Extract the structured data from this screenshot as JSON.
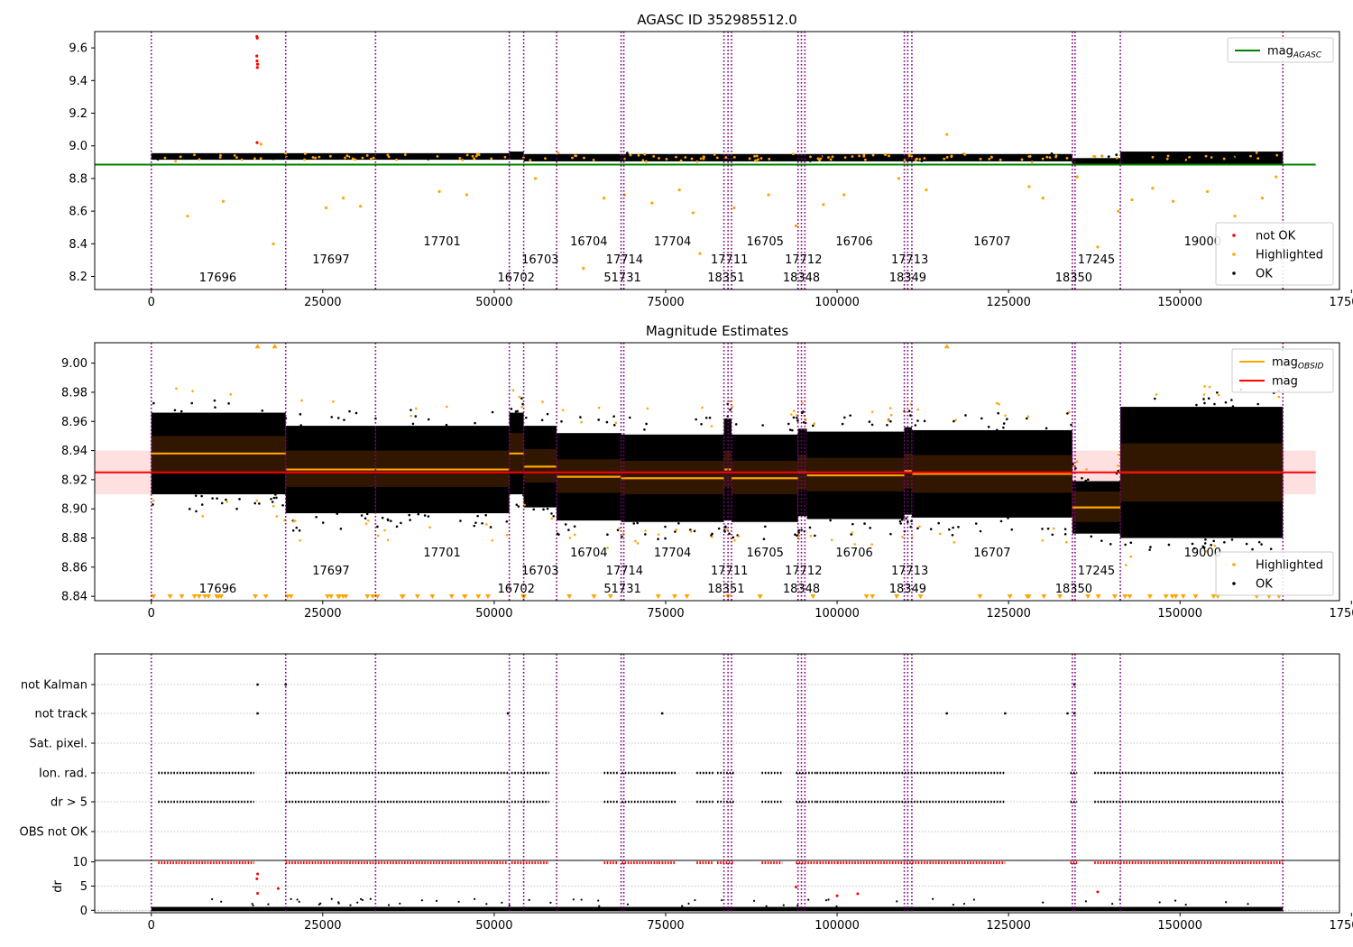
{
  "chart_data": [
    {
      "type": "scatter",
      "title": "AGASC ID 352985512.0",
      "xlim": [
        -8250,
        173250
      ],
      "ylim": [
        8.12,
        9.7
      ],
      "xticks": [
        0,
        25000,
        50000,
        75000,
        100000,
        125000,
        150000,
        175000
      ],
      "xtick_labels": [
        "0",
        "25000",
        "50000",
        "75000",
        "100000",
        "125000",
        "150000",
        "175000"
      ],
      "yticks": [
        8.2,
        8.4,
        8.6,
        8.8,
        9.0,
        9.2,
        9.4,
        9.6
      ],
      "ytick_labels": [
        "8.2",
        "8.4",
        "8.6",
        "8.8",
        "9.0",
        "9.2",
        "9.4",
        "9.6"
      ],
      "mag_agasc": 8.885,
      "band": [
        8.915,
        8.96
      ],
      "legends": [
        {
          "position": "top-right",
          "entries": [
            {
              "label": "mag",
              "sub": "AGASC",
              "color": "#008000",
              "kind": "line"
            }
          ]
        },
        {
          "position": "bottom-right",
          "entries": [
            {
              "label": "not OK",
              "color": "#ff0000",
              "kind": "dot"
            },
            {
              "label": "Highlighted",
              "color": "#ffa500",
              "kind": "dot"
            },
            {
              "label": "OK",
              "color": "#000000",
              "kind": "dot"
            }
          ]
        }
      ],
      "outliers_notok": [
        [
          15400,
          9.67
        ],
        [
          15450,
          9.66
        ],
        [
          15380,
          9.55
        ],
        [
          15420,
          9.52
        ],
        [
          15500,
          9.5
        ],
        [
          15460,
          9.48
        ],
        [
          15420,
          9.02
        ]
      ],
      "outliers_high": [
        [
          5300,
          8.57
        ],
        [
          10500,
          8.66
        ],
        [
          17800,
          8.4
        ],
        [
          16000,
          9.01
        ],
        [
          25500,
          8.62
        ],
        [
          28000,
          8.68
        ],
        [
          30500,
          8.63
        ],
        [
          42000,
          8.72
        ],
        [
          46000,
          8.7
        ],
        [
          56000,
          8.8
        ],
        [
          63000,
          8.25
        ],
        [
          66000,
          8.68
        ],
        [
          69000,
          8.7
        ],
        [
          73000,
          8.65
        ],
        [
          77000,
          8.73
        ],
        [
          79000,
          8.59
        ],
        [
          80000,
          8.34
        ],
        [
          85000,
          8.62
        ],
        [
          90000,
          8.7
        ],
        [
          94000,
          8.51
        ],
        [
          98000,
          8.64
        ],
        [
          101000,
          8.7
        ],
        [
          109000,
          8.8
        ],
        [
          116000,
          9.07
        ],
        [
          113000,
          8.73
        ],
        [
          128000,
          8.75
        ],
        [
          130000,
          8.68
        ],
        [
          135000,
          8.81
        ],
        [
          138000,
          8.38
        ],
        [
          141000,
          8.6
        ],
        [
          143000,
          8.67
        ],
        [
          146000,
          8.74
        ],
        [
          149000,
          8.66
        ],
        [
          154000,
          8.72
        ],
        [
          158000,
          8.57
        ],
        [
          162000,
          8.68
        ],
        [
          164000,
          8.81
        ]
      ]
    },
    {
      "type": "scatter",
      "title": "Magnitude Estimates",
      "xlim": [
        -8250,
        173250
      ],
      "ylim": [
        8.837,
        9.014
      ],
      "xticks": [
        0,
        25000,
        50000,
        75000,
        100000,
        125000,
        150000,
        175000
      ],
      "xtick_labels": [
        "0",
        "25000",
        "50000",
        "75000",
        "100000",
        "125000",
        "150000",
        "175000"
      ],
      "yticks": [
        8.84,
        8.86,
        8.88,
        8.9,
        8.92,
        8.94,
        8.96,
        8.98,
        9.0
      ],
      "ytick_labels": [
        "8.84",
        "8.86",
        "8.88",
        "8.90",
        "8.92",
        "8.94",
        "8.96",
        "8.98",
        "9.00"
      ],
      "mag": 8.925,
      "mag_band": [
        8.91,
        8.94
      ],
      "obsid_segments": [
        {
          "x0": 0,
          "x1": 19600,
          "mag": 8.938,
          "lo": 8.925,
          "hi": 8.95,
          "spread": 0.028
        },
        {
          "x0": 19600,
          "x1": 32700,
          "mag": 8.927,
          "lo": 8.915,
          "hi": 8.94,
          "spread": 0.03
        },
        {
          "x0": 32700,
          "x1": 52200,
          "mag": 8.927,
          "lo": 8.915,
          "hi": 8.94,
          "spread": 0.03
        },
        {
          "x0": 52200,
          "x1": 54300,
          "mag": 8.938,
          "lo": 8.925,
          "hi": 8.952,
          "spread": 0.028
        },
        {
          "x0": 54300,
          "x1": 59100,
          "mag": 8.929,
          "lo": 8.918,
          "hi": 8.941,
          "spread": 0.028
        },
        {
          "x0": 59100,
          "x1": 68500,
          "mag": 8.922,
          "lo": 8.911,
          "hi": 8.934,
          "spread": 0.03
        },
        {
          "x0": 68500,
          "x1": 83500,
          "mag": 8.921,
          "lo": 8.91,
          "hi": 8.933,
          "spread": 0.03
        },
        {
          "x0": 83500,
          "x1": 84600,
          "mag": 8.927,
          "lo": 8.915,
          "hi": 8.94,
          "spread": 0.035
        },
        {
          "x0": 84600,
          "x1": 94300,
          "mag": 8.921,
          "lo": 8.91,
          "hi": 8.933,
          "spread": 0.03
        },
        {
          "x0": 94300,
          "x1": 95600,
          "mag": 8.925,
          "lo": 8.913,
          "hi": 8.937,
          "spread": 0.03
        },
        {
          "x0": 95600,
          "x1": 109800,
          "mag": 8.923,
          "lo": 8.912,
          "hi": 8.935,
          "spread": 0.03
        },
        {
          "x0": 109800,
          "x1": 110900,
          "mag": 8.926,
          "lo": 8.914,
          "hi": 8.938,
          "spread": 0.03
        },
        {
          "x0": 110900,
          "x1": 134300,
          "mag": 8.924,
          "lo": 8.911,
          "hi": 8.937,
          "spread": 0.03
        },
        {
          "x0": 134300,
          "x1": 141300,
          "mag": 8.901,
          "lo": 8.891,
          "hi": 8.912,
          "spread": 0.018
        },
        {
          "x0": 141300,
          "x1": 165000,
          "mag": 8.925,
          "lo": 8.905,
          "hi": 8.945,
          "spread": 0.045
        }
      ],
      "legends": [
        {
          "position": "top-right",
          "entries": [
            {
              "label": "mag",
              "sub": "OBSID",
              "color": "#ffa500",
              "kind": "line"
            },
            {
              "label": "mag",
              "sub": "",
              "color": "#ff0000",
              "kind": "line"
            }
          ]
        },
        {
          "position": "bottom-right",
          "entries": [
            {
              "label": "Highlighted",
              "color": "#ffa500",
              "kind": "dot"
            },
            {
              "label": "OK",
              "color": "#000000",
              "kind": "dot"
            }
          ]
        }
      ]
    },
    {
      "type": "scatter",
      "title": "",
      "xlim": [
        -8250,
        173250
      ],
      "ylabels": [
        "OBS not OK",
        "dr > 5",
        "Ion. rad.",
        "Sat. pixel.",
        "not track",
        "not Kalman"
      ],
      "flag_segments": [
        [
          1000,
          15000
        ],
        [
          19600,
          52000
        ],
        [
          52500,
          58000
        ],
        [
          66000,
          68000
        ],
        [
          68600,
          74000
        ],
        [
          74000,
          76500
        ],
        [
          79500,
          82000
        ],
        [
          82500,
          85000
        ],
        [
          89000,
          92000
        ],
        [
          94000,
          97000
        ],
        [
          97000,
          100000
        ],
        [
          100000,
          124500
        ],
        [
          134000,
          135000
        ],
        [
          137500,
          165000
        ]
      ],
      "not_kalman_x": [
        15500,
        19600,
        134600
      ],
      "not_track_x": [
        15500,
        52000,
        74500,
        116000,
        124500,
        133600,
        134600
      ],
      "dr_ylabel": "dr",
      "dr_yticks": [
        0,
        5,
        10
      ],
      "dr_ytick_labels": [
        "0",
        "5",
        "10"
      ],
      "dr_ylim": [
        -0.5,
        10.3
      ]
    }
  ],
  "vlines_x": [
    0,
    19600,
    32700,
    52200,
    54300,
    59100,
    68500,
    68900,
    83500,
    84100,
    84600,
    94300,
    94800,
    95300,
    109800,
    110300,
    110900,
    134300,
    134700,
    141300,
    165000
  ],
  "obsid_labels": [
    {
      "text": "17696",
      "x": 9700,
      "level": 0
    },
    {
      "text": "17697",
      "x": 26200,
      "level": 1
    },
    {
      "text": "17701",
      "x": 42400,
      "level": 2
    },
    {
      "text": "16702",
      "x": 53200,
      "level": 0
    },
    {
      "text": "16703",
      "x": 56700,
      "level": 1
    },
    {
      "text": "16704",
      "x": 63800,
      "level": 2
    },
    {
      "text": "51731",
      "x": 68700,
      "level": 0
    },
    {
      "text": "17714",
      "x": 69000,
      "level": 1
    },
    {
      "text": "17704",
      "x": 76000,
      "level": 2
    },
    {
      "text": "18351",
      "x": 83800,
      "level": 0
    },
    {
      "text": "17711",
      "x": 84300,
      "level": 1
    },
    {
      "text": "16705",
      "x": 89500,
      "level": 2
    },
    {
      "text": "18348",
      "x": 94800,
      "level": 0
    },
    {
      "text": "17712",
      "x": 95100,
      "level": 1
    },
    {
      "text": "16706",
      "x": 102500,
      "level": 2
    },
    {
      "text": "18349",
      "x": 110300,
      "level": 0
    },
    {
      "text": "17713",
      "x": 110600,
      "level": 1
    },
    {
      "text": "16707",
      "x": 122600,
      "level": 2
    },
    {
      "text": "18350",
      "x": 134500,
      "level": 0
    },
    {
      "text": "17245",
      "x": 137800,
      "level": 1
    },
    {
      "text": "19000",
      "x": 153300,
      "level": 2
    }
  ],
  "colors": {
    "ok": "#000000",
    "highlighted": "#ffa500",
    "notok": "#ff0000",
    "vline": "#800080",
    "agasc": "#008000"
  }
}
